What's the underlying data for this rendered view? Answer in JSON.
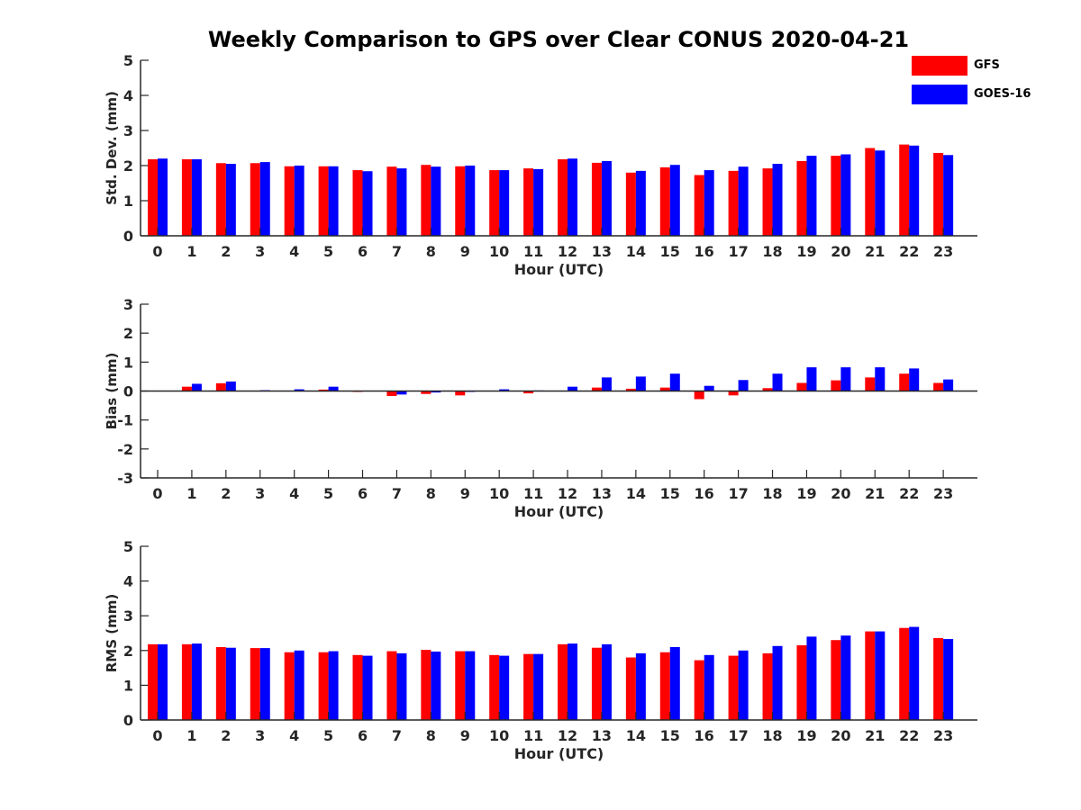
{
  "chart_data": {
    "title": "Weekly Comparison to GPS over Clear CONUS 2020-04-21",
    "type": "bar",
    "legend": {
      "placement": "top-right",
      "entries": [
        {
          "name": "GFS",
          "color": "#ff0000"
        },
        {
          "name": "GOES-16",
          "color": "#0000ff"
        }
      ]
    },
    "panels": [
      {
        "type": "bar",
        "xlabel": "Hour (UTC)",
        "ylabel": "Std. Dev. (mm)",
        "ylim": [
          0,
          5
        ],
        "yticks": [
          "0",
          "1",
          "2",
          "3",
          "4",
          "5"
        ],
        "categories": [
          "0",
          "1",
          "2",
          "3",
          "4",
          "5",
          "6",
          "7",
          "8",
          "9",
          "10",
          "11",
          "12",
          "13",
          "14",
          "15",
          "16",
          "17",
          "18",
          "19",
          "20",
          "21",
          "22",
          "23"
        ],
        "series": [
          {
            "name": "GFS",
            "color": "#ff0000",
            "values": [
              2.18,
              2.18,
              2.07,
              2.07,
              1.98,
              1.98,
              1.87,
              1.97,
              2.02,
              1.98,
              1.87,
              1.92,
              2.18,
              2.08,
              1.8,
              1.95,
              1.73,
              1.85,
              1.92,
              2.13,
              2.28,
              2.5,
              2.6,
              2.36
            ]
          },
          {
            "name": "GOES-16",
            "color": "#0000ff",
            "values": [
              2.2,
              2.18,
              2.05,
              2.1,
              2.0,
              1.98,
              1.84,
              1.92,
              1.97,
              2.0,
              1.87,
              1.9,
              2.2,
              2.13,
              1.85,
              2.02,
              1.87,
              1.97,
              2.05,
              2.28,
              2.32,
              2.43,
              2.57,
              2.3
            ]
          }
        ]
      },
      {
        "type": "bar",
        "xlabel": "Hour (UTC)",
        "ylabel": "Bias (mm)",
        "ylim": [
          -3,
          3
        ],
        "yticks": [
          "-3",
          "-2",
          "-1",
          "0",
          "1",
          "2",
          "3"
        ],
        "categories": [
          "0",
          "1",
          "2",
          "3",
          "4",
          "5",
          "6",
          "7",
          "8",
          "9",
          "10",
          "11",
          "12",
          "13",
          "14",
          "15",
          "16",
          "17",
          "18",
          "19",
          "20",
          "21",
          "22",
          "23"
        ],
        "series": [
          {
            "name": "GFS",
            "color": "#ff0000",
            "values": [
              0.0,
              0.15,
              0.27,
              0.0,
              0.0,
              0.05,
              -0.03,
              -0.17,
              -0.1,
              -0.15,
              0.0,
              -0.08,
              0.0,
              0.12,
              0.08,
              0.12,
              -0.28,
              -0.15,
              0.1,
              0.28,
              0.37,
              0.47,
              0.6,
              0.28
            ]
          },
          {
            "name": "GOES-16",
            "color": "#0000ff",
            "values": [
              0.0,
              0.25,
              0.33,
              0.03,
              0.06,
              0.15,
              0.0,
              -0.12,
              -0.05,
              -0.03,
              0.06,
              0.02,
              0.15,
              0.47,
              0.5,
              0.6,
              0.18,
              0.38,
              0.6,
              0.82,
              0.82,
              0.82,
              0.78,
              0.4
            ]
          }
        ]
      },
      {
        "type": "bar",
        "xlabel": "Hour (UTC)",
        "ylabel": "RMS (mm)",
        "ylim": [
          0,
          5
        ],
        "yticks": [
          "0",
          "1",
          "2",
          "3",
          "4",
          "5"
        ],
        "categories": [
          "0",
          "1",
          "2",
          "3",
          "4",
          "5",
          "6",
          "7",
          "8",
          "9",
          "10",
          "11",
          "12",
          "13",
          "14",
          "15",
          "16",
          "17",
          "18",
          "19",
          "20",
          "21",
          "22",
          "23"
        ],
        "series": [
          {
            "name": "GFS",
            "color": "#ff0000",
            "values": [
              2.18,
              2.18,
              2.1,
              2.07,
              1.95,
              1.95,
              1.87,
              1.98,
              2.02,
              1.98,
              1.87,
              1.9,
              2.18,
              2.08,
              1.8,
              1.95,
              1.72,
              1.85,
              1.92,
              2.15,
              2.3,
              2.55,
              2.65,
              2.36
            ]
          },
          {
            "name": "GOES-16",
            "color": "#0000ff",
            "values": [
              2.18,
              2.2,
              2.08,
              2.07,
              2.0,
              1.98,
              1.85,
              1.92,
              1.97,
              1.98,
              1.85,
              1.9,
              2.2,
              2.18,
              1.92,
              2.1,
              1.87,
              2.0,
              2.13,
              2.4,
              2.43,
              2.55,
              2.68,
              2.33
            ]
          }
        ]
      }
    ]
  }
}
